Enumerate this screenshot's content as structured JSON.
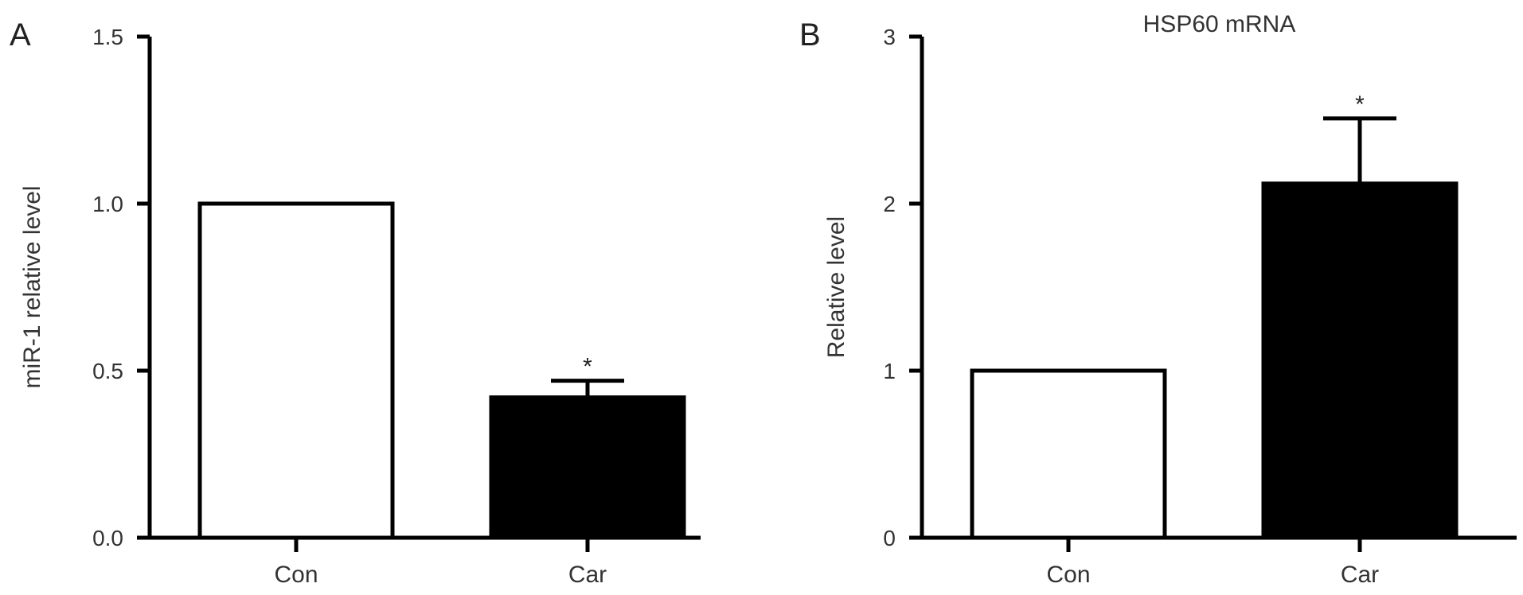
{
  "chart_data": [
    {
      "panel_label": "A",
      "type": "bar",
      "title": "",
      "xlabel": "",
      "ylabel": "miR-1 relative level",
      "ylim": [
        0,
        1.5
      ],
      "yticks": [
        "0.0",
        "0.5",
        "1.0",
        "1.5"
      ],
      "ytick_values": [
        0,
        0.5,
        1.0,
        1.5
      ],
      "categories": [
        "Con",
        "Car"
      ],
      "values": [
        1.0,
        0.42
      ],
      "errors": [
        0,
        0.05
      ],
      "fills": [
        "#ffffff",
        "#000000"
      ],
      "annotations": [
        "",
        "*"
      ],
      "grid": false
    },
    {
      "panel_label": "B",
      "type": "bar",
      "title": "HSP60 mRNA",
      "xlabel": "",
      "ylabel": "Relative level",
      "ylim": [
        0,
        3
      ],
      "yticks": [
        "0",
        "1",
        "2",
        "3"
      ],
      "ytick_values": [
        0,
        1,
        2,
        3
      ],
      "categories": [
        "Con",
        "Car"
      ],
      "values": [
        1.0,
        2.12
      ],
      "errors": [
        0,
        0.39
      ],
      "fills": [
        "#ffffff",
        "#000000"
      ],
      "annotations": [
        "",
        "*"
      ],
      "grid": false
    }
  ]
}
